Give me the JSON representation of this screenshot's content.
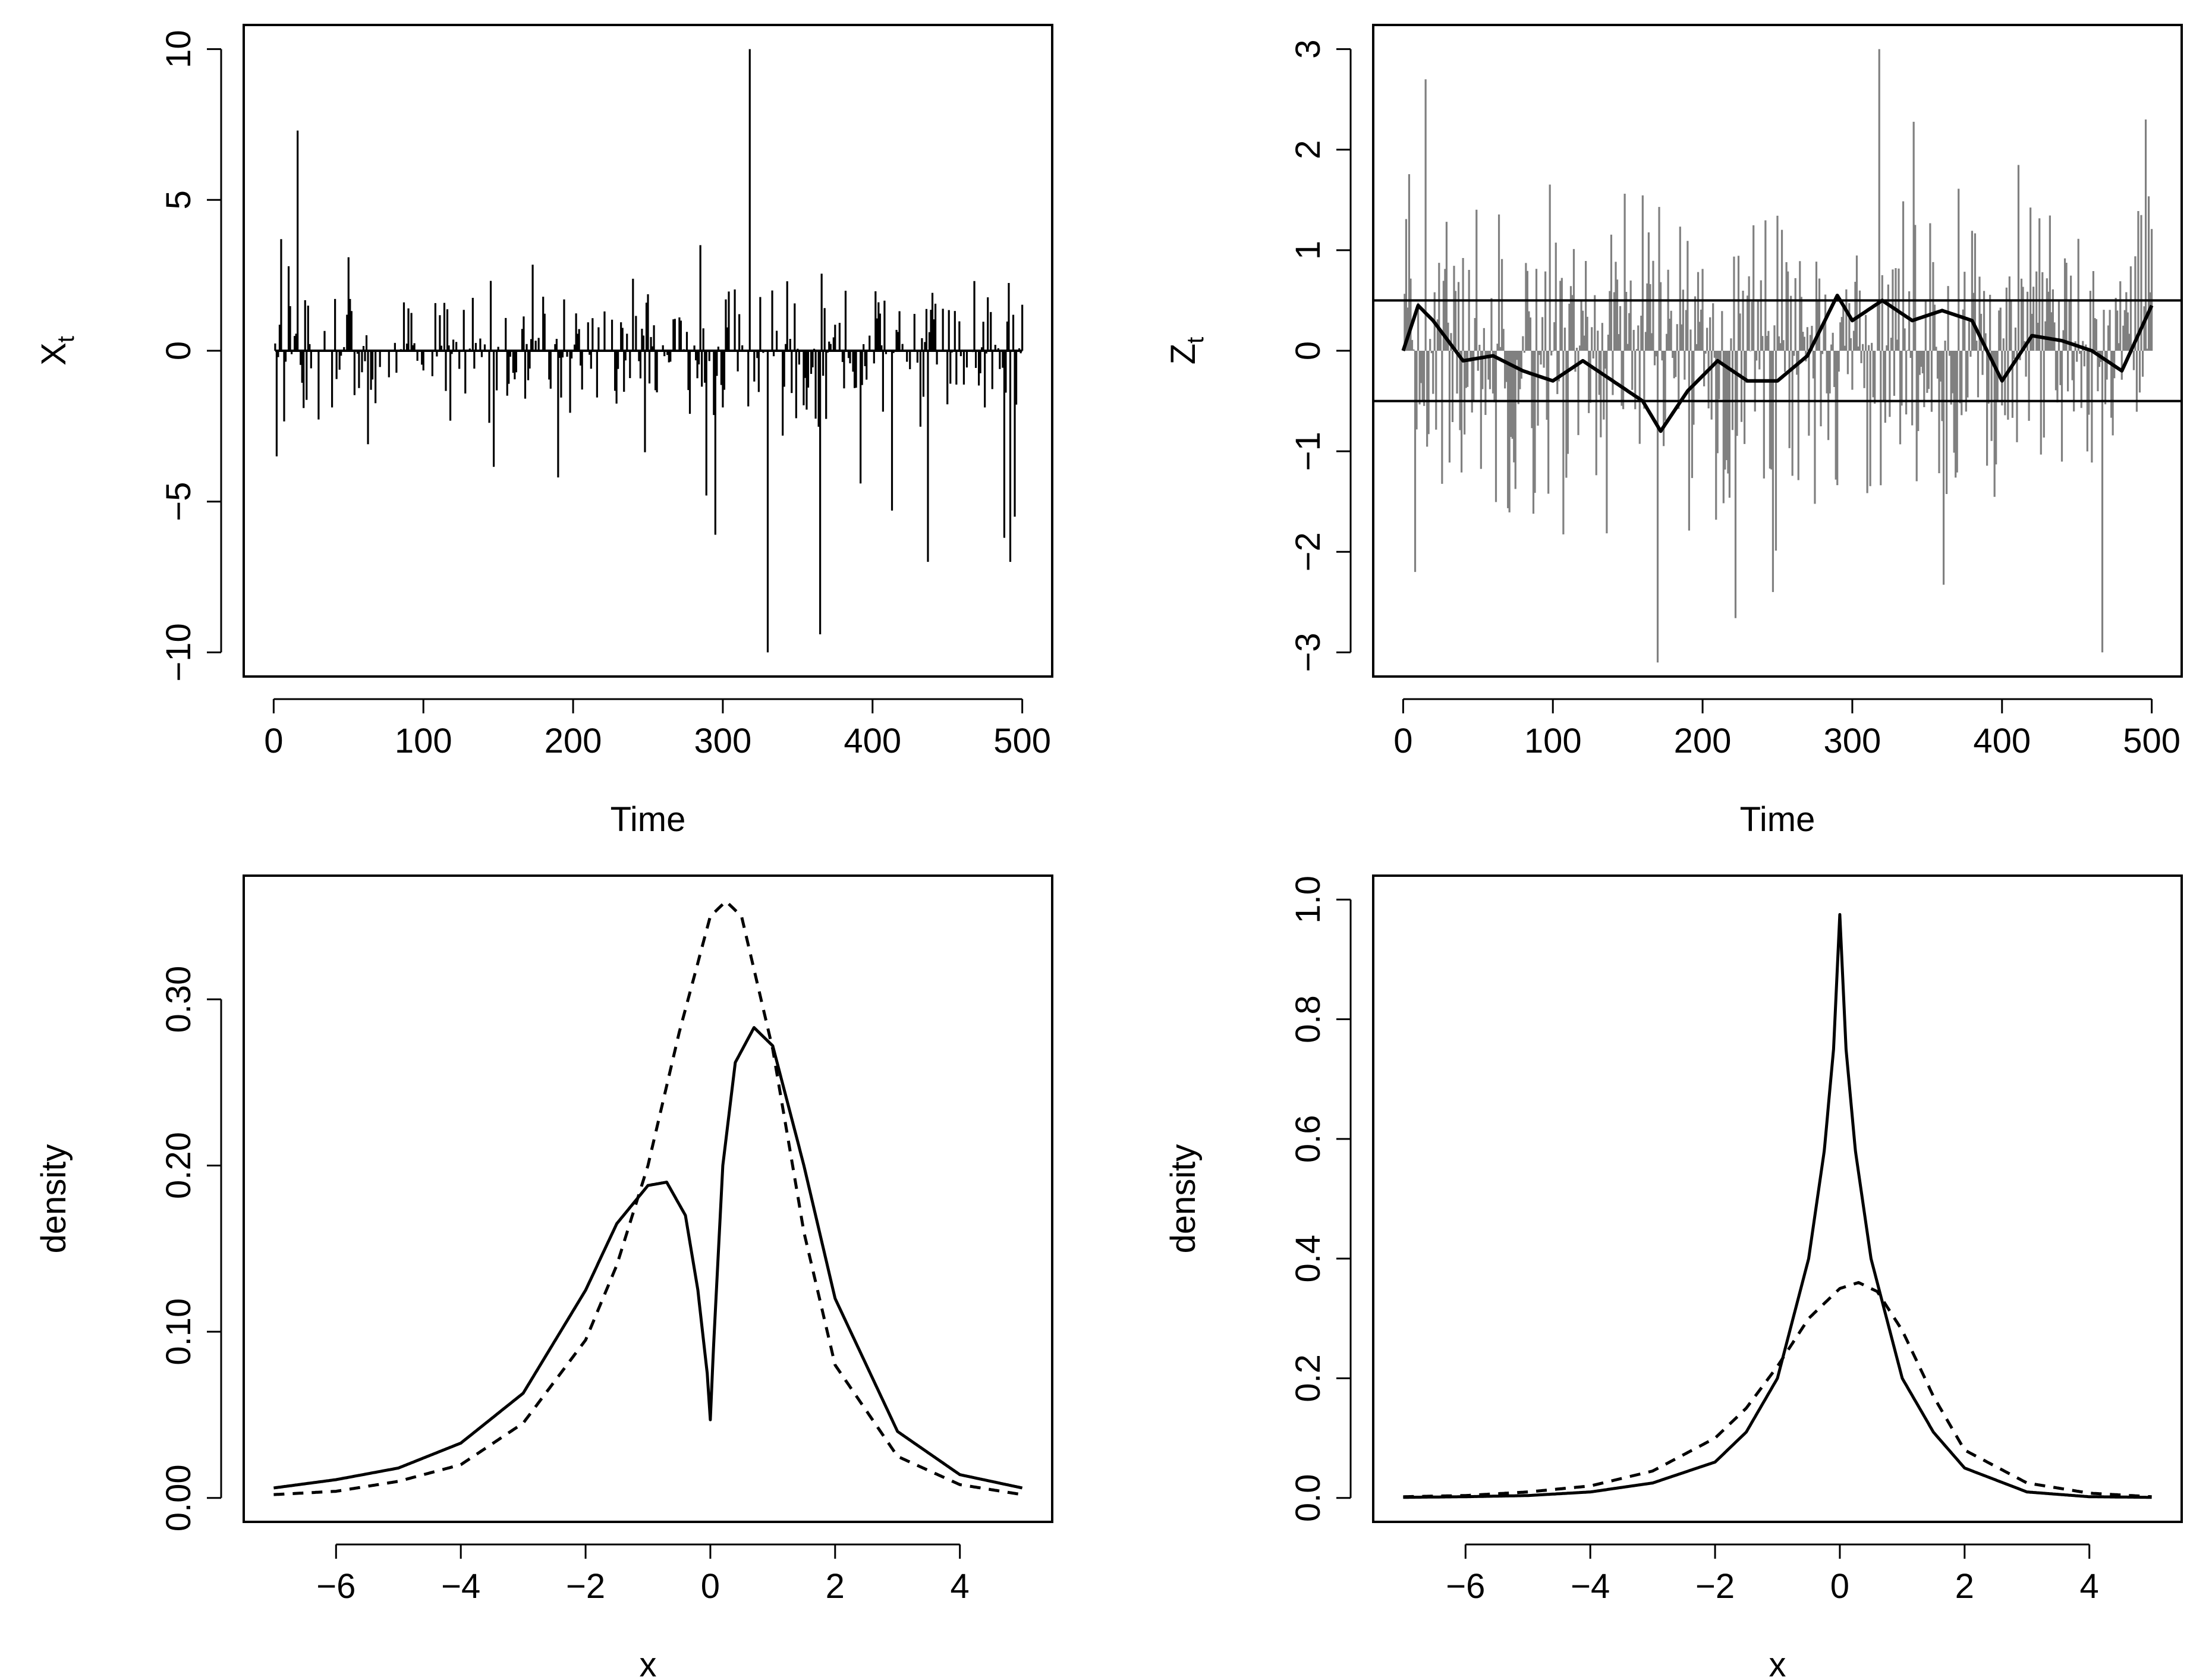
{
  "figure": {
    "layout": "2x2 grid"
  },
  "chart_data": [
    {
      "id": "top-left",
      "type": "line",
      "subtype": "spike time series",
      "xlabel": "Time",
      "ylabel": {
        "base": "X",
        "subscript": "t"
      },
      "xlim": [
        0,
        500
      ],
      "ylim": [
        -10,
        10
      ],
      "xticks": [
        0,
        100,
        200,
        300,
        400,
        500
      ],
      "yticks": [
        -10,
        -5,
        0,
        5,
        10
      ],
      "series": [
        {
          "name": "X_t",
          "color": "#000000",
          "n": 500,
          "noise_std": 1.1,
          "notable_points": [
            {
              "x": 2,
              "y": -3.5
            },
            {
              "x": 5,
              "y": 3.7
            },
            {
              "x": 10,
              "y": 2.8
            },
            {
              "x": 16,
              "y": 7.3
            },
            {
              "x": 20,
              "y": -1.9
            },
            {
              "x": 50,
              "y": 3.1
            },
            {
              "x": 63,
              "y": -3.1
            },
            {
              "x": 190,
              "y": -4.2
            },
            {
              "x": 285,
              "y": 3.5
            },
            {
              "x": 289,
              "y": -4.8
            },
            {
              "x": 295,
              "y": -6.1
            },
            {
              "x": 318,
              "y": 10.0
            },
            {
              "x": 330,
              "y": -10.0
            },
            {
              "x": 365,
              "y": -9.4
            },
            {
              "x": 392,
              "y": -4.4
            },
            {
              "x": 413,
              "y": -5.3
            },
            {
              "x": 437,
              "y": -7.0
            },
            {
              "x": 488,
              "y": -6.2
            },
            {
              "x": 492,
              "y": -7.0
            },
            {
              "x": 495,
              "y": -5.5
            }
          ]
        }
      ]
    },
    {
      "id": "top-right",
      "type": "line",
      "subtype": "time series with running average and reference lines",
      "xlabel": "Time",
      "ylabel": {
        "base": "Z",
        "subscript": "t"
      },
      "xlim": [
        0,
        500
      ],
      "ylim": [
        -3,
        3
      ],
      "xticks": [
        0,
        100,
        200,
        300,
        400,
        500
      ],
      "yticks": [
        -3,
        -2,
        -1,
        0,
        1,
        2,
        3
      ],
      "series": [
        {
          "name": "Z_t",
          "color": "#808080",
          "n": 500,
          "noise_std": 0.75,
          "notable_points": [
            {
              "x": 8,
              "y": -2.2
            },
            {
              "x": 15,
              "y": 2.7
            },
            {
              "x": 170,
              "y": -3.1
            },
            {
              "x": 247,
              "y": -2.4
            },
            {
              "x": 318,
              "y": 3.0
            },
            {
              "x": 467,
              "y": -3.0
            },
            {
              "x": 496,
              "y": 2.3
            }
          ]
        },
        {
          "name": "smoothed Z_t",
          "color": "#000000",
          "x": [
            0,
            10,
            20,
            40,
            60,
            80,
            100,
            120,
            140,
            160,
            172,
            190,
            210,
            230,
            250,
            270,
            290,
            300,
            320,
            340,
            360,
            380,
            400,
            420,
            440,
            460,
            480,
            500
          ],
          "y": [
            0.0,
            0.45,
            0.3,
            -0.1,
            -0.05,
            -0.2,
            -0.3,
            -0.1,
            -0.3,
            -0.5,
            -0.8,
            -0.4,
            -0.1,
            -0.3,
            -0.3,
            -0.05,
            0.55,
            0.3,
            0.5,
            0.3,
            0.4,
            0.3,
            -0.3,
            0.15,
            0.1,
            0.0,
            -0.2,
            0.45
          ]
        }
      ],
      "hlines": [
        0.5,
        -0.5
      ]
    },
    {
      "id": "bottom-left",
      "type": "line",
      "xlabel": "x",
      "ylabel": "density",
      "xlim": [
        -7,
        5
      ],
      "ylim": [
        0,
        0.36
      ],
      "xticks": [
        -6,
        -4,
        -2,
        0,
        2,
        4
      ],
      "yticks": [
        0.0,
        0.1,
        0.2,
        0.3
      ],
      "ytick_labels": [
        "0.00",
        "0.10",
        "0.20",
        "0.30"
      ],
      "series": [
        {
          "name": "solid",
          "style": "solid",
          "x": [
            -7,
            -6,
            -5,
            -4,
            -3,
            -2,
            -1.5,
            -1.0,
            -0.7,
            -0.4,
            -0.2,
            -0.05,
            0.0,
            0.05,
            0.2,
            0.4,
            0.7,
            1.0,
            1.5,
            2,
            3,
            4,
            5
          ],
          "y": [
            0.006,
            0.011,
            0.018,
            0.033,
            0.063,
            0.125,
            0.165,
            0.188,
            0.19,
            0.17,
            0.125,
            0.075,
            0.047,
            0.09,
            0.2,
            0.262,
            0.283,
            0.272,
            0.2,
            0.12,
            0.04,
            0.014,
            0.006
          ]
        },
        {
          "name": "dashed",
          "style": "dashed",
          "x": [
            -7,
            -6,
            -5,
            -4,
            -3,
            -2,
            -1.5,
            -1,
            -0.5,
            0,
            0.25,
            0.5,
            1.0,
            1.5,
            2,
            3,
            4,
            5
          ],
          "y": [
            0.002,
            0.004,
            0.01,
            0.02,
            0.045,
            0.095,
            0.14,
            0.2,
            0.28,
            0.35,
            0.359,
            0.35,
            0.27,
            0.16,
            0.08,
            0.025,
            0.008,
            0.002
          ]
        }
      ]
    },
    {
      "id": "bottom-right",
      "type": "line",
      "xlabel": "x",
      "ylabel": "density",
      "xlim": [
        -7,
        5
      ],
      "ylim": [
        0,
        1.0
      ],
      "xticks": [
        -6,
        -4,
        -2,
        0,
        2,
        4
      ],
      "yticks": [
        0.0,
        0.2,
        0.4,
        0.6,
        0.8,
        1.0
      ],
      "ytick_labels": [
        "0.0",
        "0.2",
        "0.4",
        "0.6",
        "0.8",
        "1.0"
      ],
      "series": [
        {
          "name": "solid",
          "style": "solid",
          "x": [
            -7,
            -6,
            -5,
            -4,
            -3,
            -2,
            -1.5,
            -1,
            -0.5,
            -0.25,
            -0.1,
            0,
            0.1,
            0.25,
            0.5,
            1,
            1.5,
            2,
            3,
            4,
            5
          ],
          "y": [
            0.001,
            0.002,
            0.004,
            0.01,
            0.025,
            0.06,
            0.11,
            0.2,
            0.4,
            0.58,
            0.75,
            0.975,
            0.75,
            0.58,
            0.4,
            0.2,
            0.11,
            0.05,
            0.01,
            0.002,
            0.001
          ]
        },
        {
          "name": "dashed",
          "style": "dashed",
          "x": [
            -7,
            -6,
            -5,
            -4,
            -3,
            -2,
            -1.5,
            -1,
            -0.5,
            0,
            0.3,
            0.6,
            1,
            1.5,
            2,
            3,
            4,
            5
          ],
          "y": [
            0.002,
            0.004,
            0.01,
            0.02,
            0.045,
            0.1,
            0.15,
            0.22,
            0.3,
            0.35,
            0.36,
            0.345,
            0.28,
            0.17,
            0.08,
            0.025,
            0.008,
            0.002
          ]
        }
      ]
    }
  ]
}
